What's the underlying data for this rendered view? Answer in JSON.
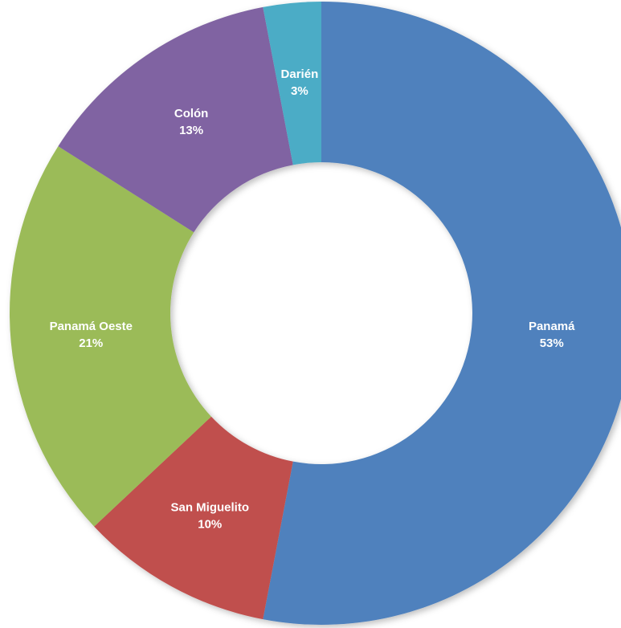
{
  "chart_data": {
    "type": "donut",
    "categories": [
      "Panamá",
      "San Miguelito",
      "Panamá Oeste",
      "Colón",
      "Darién"
    ],
    "values": [
      53,
      10,
      21,
      13,
      3
    ],
    "value_labels": [
      "53%",
      "10%",
      "21%",
      "13%",
      "3%"
    ],
    "colors": [
      "#4f81bd",
      "#c0504d",
      "#9bbb59",
      "#8064a2",
      "#4bacc6"
    ]
  }
}
